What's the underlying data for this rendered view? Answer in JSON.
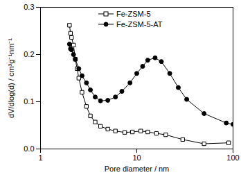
{
  "chart_data": {
    "type": "line",
    "x_label": "Pore diameter / nm",
    "y_label": "dV/dlog(d) / cm³g⁻¹nm⁻¹",
    "log": "x",
    "xlim": [
      1,
      100
    ],
    "xticks": [
      1,
      10,
      100
    ],
    "ylim": [
      0,
      0.3
    ],
    "yticks": [
      {
        "value": 0,
        "label": "0.0"
      },
      0.1,
      0.2,
      0.3
    ],
    "grid": false,
    "legend": "upper right",
    "series": [
      {
        "name": "Fe-ZSM-5",
        "color": "#000000",
        "marker": "open square",
        "x": [
          2.0,
          2.05,
          2.1,
          2.2,
          2.3,
          2.4,
          2.5,
          2.7,
          3.0,
          3.3,
          3.7,
          4.2,
          5.0,
          6.0,
          7.5,
          9.0,
          11.0,
          13.0,
          16.0,
          20.0,
          30.0,
          50.0,
          90.0
        ],
        "values": [
          0.262,
          0.245,
          0.236,
          0.22,
          0.19,
          0.17,
          0.15,
          0.12,
          0.09,
          0.07,
          0.057,
          0.048,
          0.042,
          0.038,
          0.035,
          0.036,
          0.038,
          0.036,
          0.033,
          0.03,
          0.02,
          0.011,
          0.013
        ]
      },
      {
        "name": "Fe-ZSM-5-AT",
        "color": "#000000",
        "marker": "filled circle",
        "x": [
          2.0,
          2.05,
          2.1,
          2.2,
          2.3,
          2.5,
          2.7,
          3.0,
          3.3,
          3.7,
          4.2,
          5.0,
          6.0,
          7.0,
          8.5,
          10.0,
          11.5,
          13.0,
          15.5,
          18.0,
          22.0,
          27.0,
          33.0,
          50.0,
          85.0,
          100.0
        ],
        "values": [
          0.222,
          0.212,
          0.21,
          0.2,
          0.19,
          0.17,
          0.155,
          0.14,
          0.125,
          0.11,
          0.102,
          0.103,
          0.11,
          0.122,
          0.14,
          0.16,
          0.175,
          0.188,
          0.193,
          0.185,
          0.16,
          0.13,
          0.105,
          0.075,
          0.055,
          0.052
        ]
      }
    ]
  }
}
